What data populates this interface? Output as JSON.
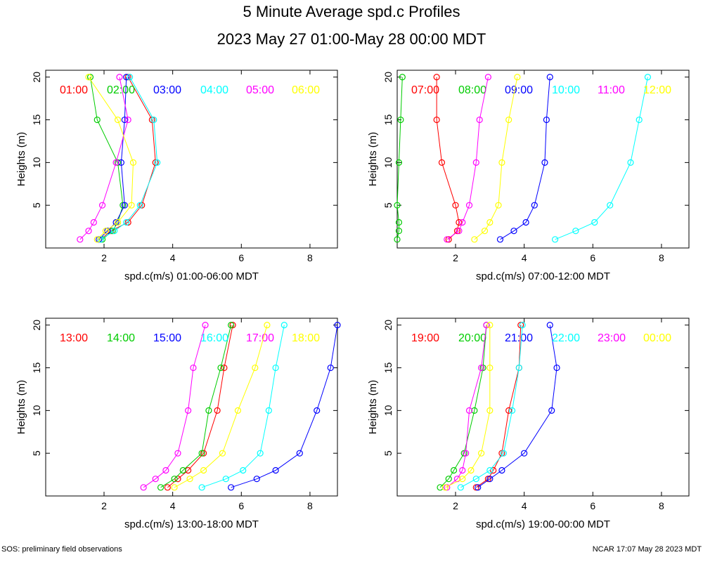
{
  "page": {
    "title": "5 Minute Average spd.c Profiles",
    "subtitle": "2023 May 27 01:00-May 28 00:00 MDT",
    "footer_left": "SOS: preliminary field observations",
    "footer_right": "NCAR 17:07 May 28 2023 MDT"
  },
  "series_colors": [
    "#ff0000",
    "#00cc00",
    "#0000ff",
    "#00ffff",
    "#ff00ff",
    "#ffff00"
  ],
  "chart_data": [
    {
      "type": "line",
      "xlabel": "spd.c(m/s) 01:00-06:00 MDT",
      "ylabel": "Heights (m)",
      "xlim": [
        0.3,
        8.8
      ],
      "ylim": [
        0,
        20.8
      ],
      "xticks": [
        2,
        4,
        6,
        8
      ],
      "yticks": [
        5,
        10,
        15,
        20
      ],
      "heights": [
        1,
        2,
        3,
        5,
        10,
        15,
        20
      ],
      "series": [
        {
          "name": "01:00",
          "values": [
            1.9,
            2.2,
            2.7,
            3.1,
            3.5,
            3.4,
            2.7
          ]
        },
        {
          "name": "02:00",
          "values": [
            1.95,
            2.25,
            2.4,
            2.55,
            2.4,
            1.8,
            1.6
          ]
        },
        {
          "name": "03:00",
          "values": [
            1.85,
            2.1,
            2.35,
            2.6,
            2.5,
            2.6,
            2.65
          ]
        },
        {
          "name": "04:00",
          "values": [
            1.9,
            2.3,
            2.65,
            3.05,
            3.55,
            3.45,
            2.75
          ]
        },
        {
          "name": "05:00",
          "values": [
            1.3,
            1.55,
            1.7,
            1.95,
            2.35,
            2.7,
            2.45
          ]
        },
        {
          "name": "06:00",
          "values": [
            1.8,
            2.05,
            2.4,
            2.8,
            2.85,
            2.4,
            1.55
          ]
        }
      ]
    },
    {
      "type": "line",
      "xlabel": "spd.c(m/s) 07:00-12:00 MDT",
      "ylabel": "Heights (m)",
      "xlim": [
        0.3,
        8.8
      ],
      "ylim": [
        0,
        20.8
      ],
      "xticks": [
        2,
        4,
        6,
        8
      ],
      "yticks": [
        5,
        10,
        15,
        20
      ],
      "heights": [
        1,
        2,
        3,
        5,
        10,
        15,
        20
      ],
      "series": [
        {
          "name": "07:00",
          "values": [
            1.8,
            2.05,
            2.1,
            2.0,
            1.6,
            1.45,
            1.45
          ]
        },
        {
          "name": "08:00",
          "values": [
            0.3,
            0.35,
            0.35,
            0.3,
            0.35,
            0.4,
            0.45
          ]
        },
        {
          "name": "09:00",
          "values": [
            3.3,
            3.7,
            4.05,
            4.3,
            4.6,
            4.65,
            4.75
          ]
        },
        {
          "name": "10:00",
          "values": [
            4.9,
            5.5,
            6.05,
            6.5,
            7.1,
            7.35,
            7.6
          ]
        },
        {
          "name": "11:00",
          "values": [
            1.75,
            2.1,
            2.2,
            2.4,
            2.6,
            2.7,
            2.95
          ]
        },
        {
          "name": "12:00",
          "values": [
            2.55,
            2.85,
            3.0,
            3.25,
            3.35,
            3.55,
            3.8
          ]
        }
      ]
    },
    {
      "type": "line",
      "xlabel": "spd.c(m/s) 13:00-18:00 MDT",
      "ylabel": "Heights (m)",
      "xlim": [
        0.3,
        8.8
      ],
      "ylim": [
        0,
        20.8
      ],
      "xticks": [
        2,
        4,
        6,
        8
      ],
      "yticks": [
        5,
        10,
        15,
        20
      ],
      "heights": [
        1,
        2,
        3,
        5,
        10,
        15,
        20
      ],
      "series": [
        {
          "name": "13:00",
          "values": [
            3.85,
            4.15,
            4.45,
            4.9,
            5.3,
            5.5,
            5.75
          ]
        },
        {
          "name": "14:00",
          "values": [
            3.65,
            4.05,
            4.3,
            4.85,
            5.05,
            5.4,
            5.7
          ]
        },
        {
          "name": "15:00",
          "values": [
            5.7,
            6.45,
            7.0,
            7.7,
            8.2,
            8.6,
            8.8
          ]
        },
        {
          "name": "16:00",
          "values": [
            4.85,
            5.55,
            6.05,
            6.55,
            6.8,
            7.0,
            7.25
          ]
        },
        {
          "name": "17:00",
          "values": [
            3.15,
            3.5,
            3.8,
            4.15,
            4.45,
            4.6,
            4.95
          ]
        },
        {
          "name": "18:00",
          "values": [
            4.05,
            4.5,
            4.9,
            5.45,
            5.9,
            6.4,
            6.75
          ]
        }
      ]
    },
    {
      "type": "line",
      "xlabel": "spd.c(m/s) 19:00-00:00 MDT",
      "ylabel": "Heights (m)",
      "xlim": [
        0.3,
        8.8
      ],
      "ylim": [
        0,
        20.8
      ],
      "xticks": [
        2,
        4,
        6,
        8
      ],
      "yticks": [
        5,
        10,
        15,
        20
      ],
      "heights": [
        1,
        2,
        3,
        5,
        10,
        15,
        20
      ],
      "series": [
        {
          "name": "19:00",
          "values": [
            2.6,
            2.95,
            3.1,
            3.35,
            3.55,
            3.85,
            3.9
          ]
        },
        {
          "name": "20:00",
          "values": [
            1.55,
            1.8,
            1.95,
            2.25,
            2.55,
            2.8,
            2.9
          ]
        },
        {
          "name": "21:00",
          "values": [
            2.65,
            3.0,
            3.35,
            4.0,
            4.8,
            4.95,
            4.75
          ]
        },
        {
          "name": "22:00",
          "values": [
            2.15,
            2.6,
            3.0,
            3.4,
            3.65,
            3.85,
            3.95
          ]
        },
        {
          "name": "23:00",
          "values": [
            1.75,
            2.05,
            2.2,
            2.3,
            2.4,
            2.75,
            2.9
          ]
        },
        {
          "name": "00:00",
          "values": [
            1.7,
            2.2,
            2.45,
            2.75,
            3.0,
            3.0,
            3.0
          ]
        }
      ]
    }
  ]
}
